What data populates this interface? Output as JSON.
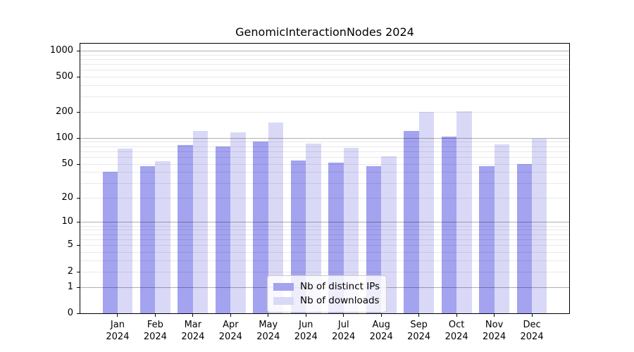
{
  "chart_data": {
    "type": "bar",
    "title": "GenomicInteractionNodes 2024",
    "categories": [
      "Jan 2024",
      "Feb 2024",
      "Mar 2024",
      "Apr 2024",
      "May 2024",
      "Jun 2024",
      "Jul 2024",
      "Aug 2024",
      "Sep 2024",
      "Oct 2024",
      "Nov 2024",
      "Dec 2024"
    ],
    "series": [
      {
        "name": "Nb of distinct IPs",
        "color": "#a3a3f0",
        "values": [
          40,
          47,
          82,
          80,
          90,
          55,
          52,
          47,
          120,
          104,
          47,
          50
        ]
      },
      {
        "name": "Nb of downloads",
        "color": "#d9d9f7",
        "values": [
          75,
          54,
          120,
          115,
          150,
          86,
          77,
          61,
          199,
          204,
          84,
          97
        ]
      }
    ],
    "yscale": "log1p",
    "yticks": [
      0,
      1,
      2,
      5,
      10,
      20,
      50,
      100,
      200,
      500,
      1000
    ],
    "ylim": [
      0,
      1200
    ],
    "xlabel": "",
    "ylabel": "",
    "grid": true,
    "major_gridline_values": [
      1,
      10,
      100,
      1000
    ],
    "legend_position": "lower center",
    "axis_color": "#000000",
    "major_grid_color": "#b0b0b0",
    "minor_grid_color": "#e8e8e8",
    "background_color": "#ffffff"
  }
}
